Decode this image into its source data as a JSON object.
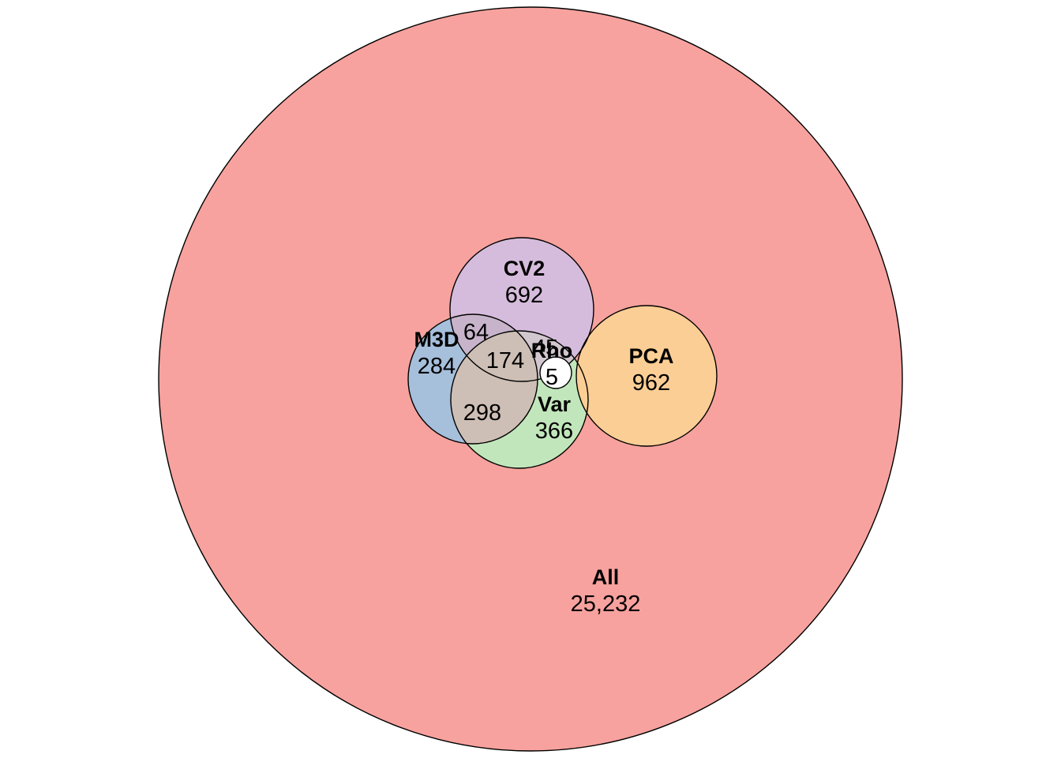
{
  "sets": {
    "all": {
      "name": "All",
      "count": "25,232",
      "color": "#f7a29e"
    },
    "cv2": {
      "name": "CV2",
      "count": "692",
      "color": "#d6bcdc"
    },
    "m3d": {
      "name": "M3D",
      "count": "284",
      "color": "#a6bfdb"
    },
    "var": {
      "name": "Var",
      "count": "366",
      "color": "#c2e6bb"
    },
    "pca": {
      "name": "PCA",
      "count": "962",
      "color": "#fbce95"
    },
    "rho": {
      "name": "Rho",
      "count": "",
      "color": "#ffffff"
    }
  },
  "overlaps": {
    "m3d_cv2": "64",
    "m3d_cv2_var": "174",
    "cv2_var": "45",
    "m3d_var": "298",
    "rho_region": "5"
  },
  "overlap_colors": {
    "m3d_cv2": "#c7b4cb",
    "m3d_var": "#cdbfb5",
    "cv2_var": "#d2c6cf"
  }
}
